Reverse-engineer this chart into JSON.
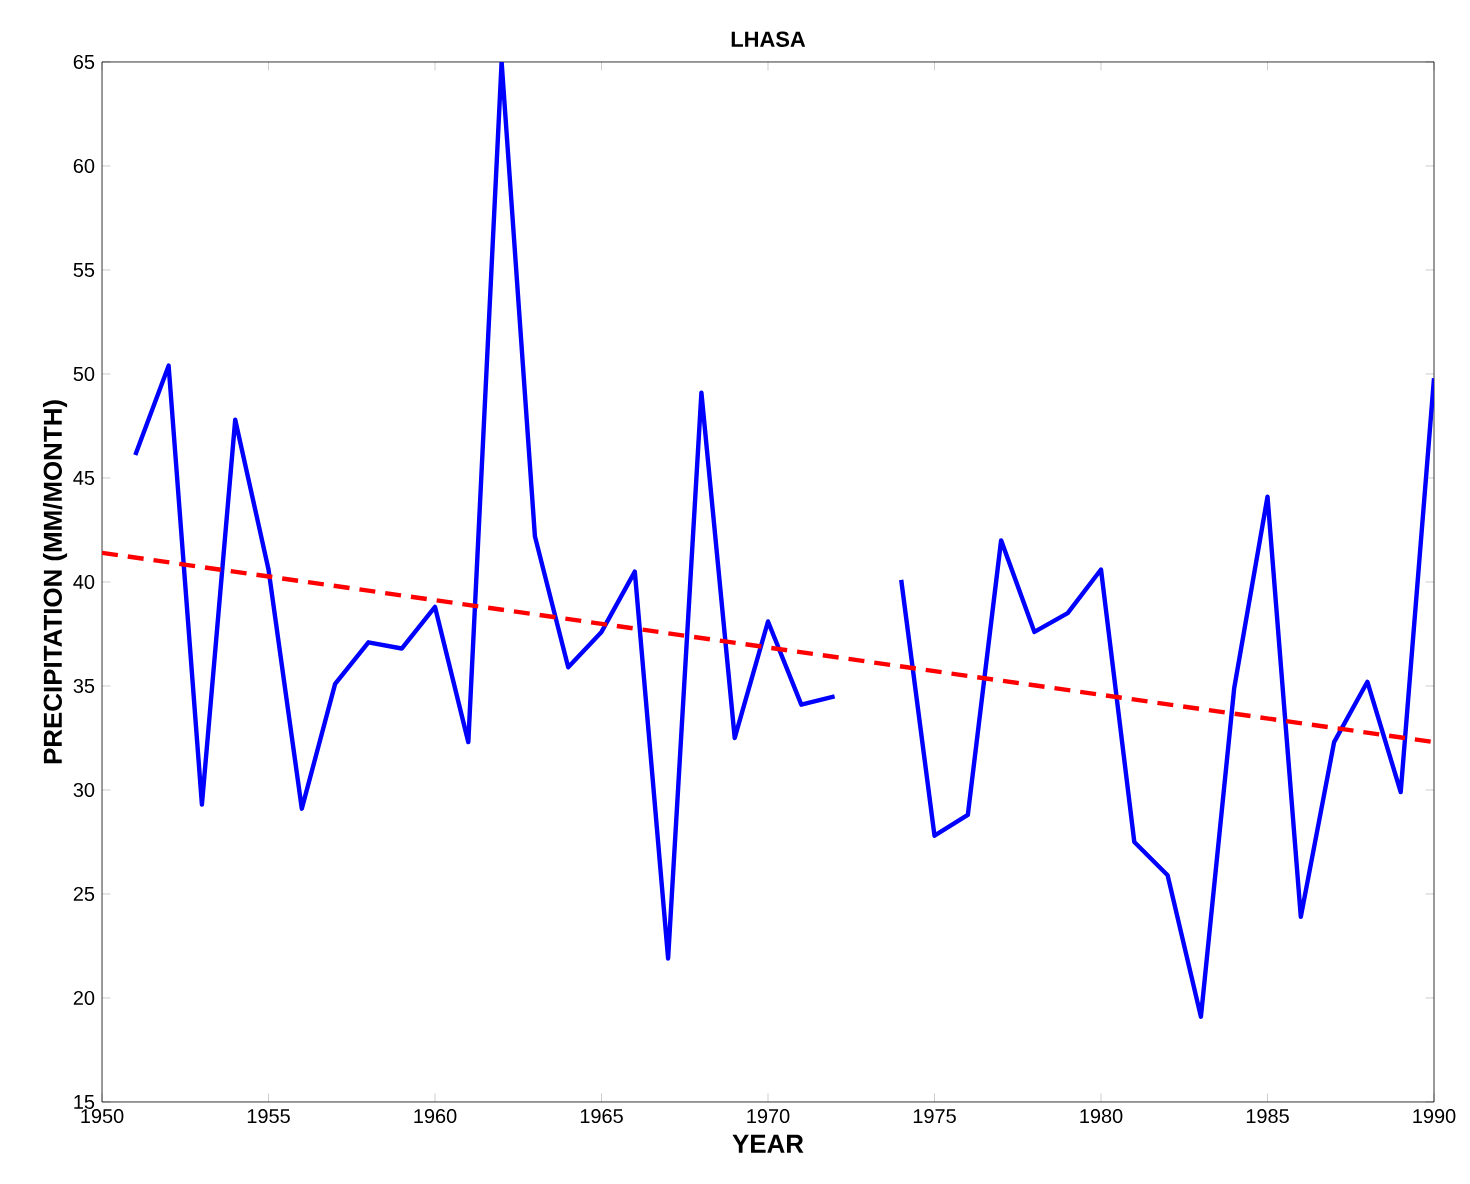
{
  "chart_data": {
    "type": "line",
    "title": "LHASA",
    "xlabel": "YEAR",
    "ylabel": "PRECIPITATION (MM/MONTH)",
    "x": [
      1951,
      1952,
      1953,
      1954,
      1955,
      1956,
      1957,
      1958,
      1959,
      1960,
      1961,
      1962,
      1963,
      1964,
      1965,
      1966,
      1967,
      1968,
      1969,
      1970,
      1971,
      1972,
      1973,
      1974,
      1975,
      1976,
      1977,
      1978,
      1979,
      1980,
      1981,
      1982,
      1983,
      1984,
      1985,
      1986,
      1987,
      1988,
      1989,
      1990
    ],
    "series": [
      {
        "color": "#0000ff",
        "line_style": "solid",
        "values": [
          46.1,
          50.4,
          29.3,
          47.8,
          40.6,
          29.1,
          35.1,
          37.1,
          36.8,
          38.8,
          32.3,
          65,
          42.2,
          35.9,
          37.6,
          40.5,
          21.9,
          49.1,
          32.5,
          38.1,
          34.1,
          34.5,
          null,
          40.1,
          27.8,
          28.8,
          42.0,
          37.6,
          38.5,
          40.6,
          27.5,
          25.9,
          19.1,
          34.9,
          44.1,
          23.9,
          32.3,
          35.2,
          29.9,
          49.8
        ]
      },
      {
        "type": "line",
        "color": "#ff0000",
        "line_style": "dashed",
        "x": [
          1950,
          1990
        ],
        "values": [
          41.4,
          32.3
        ]
      }
    ],
    "xlim": [
      1950,
      1990
    ],
    "ylim": [
      15,
      65
    ],
    "xticks": [
      1950,
      1955,
      1960,
      1965,
      1970,
      1975,
      1980,
      1985,
      1990
    ],
    "yticks": [
      15,
      20,
      25,
      30,
      35,
      40,
      45,
      50,
      55,
      60,
      65
    ],
    "grid": false,
    "marker": "none"
  }
}
